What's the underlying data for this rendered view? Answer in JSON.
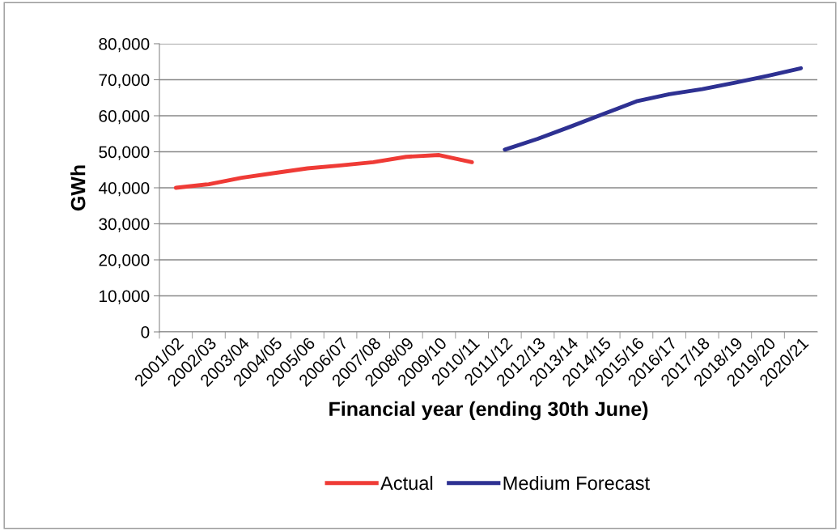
{
  "chart_data": {
    "type": "line",
    "xlabel": "Financial year (ending 30th June)",
    "ylabel": "GWh",
    "categories": [
      "2001/02",
      "2002/03",
      "2003/04",
      "2004/05",
      "2005/06",
      "2006/07",
      "2007/08",
      "2008/09",
      "2009/10",
      "2010/11",
      "2011/12",
      "2012/13",
      "2013/14",
      "2014/15",
      "2015/16",
      "2016/17",
      "2017/18",
      "2018/19",
      "2019/20",
      "2020/21"
    ],
    "series": [
      {
        "name": "Actual",
        "color": "#ef3b36",
        "values": [
          40000,
          41000,
          42800,
          44100,
          45400,
          46200,
          47100,
          48600,
          49100,
          47100,
          null,
          null,
          null,
          null,
          null,
          null,
          null,
          null,
          null,
          null
        ]
      },
      {
        "name": "Medium Forecast",
        "color": "#2e3192",
        "values": [
          null,
          null,
          null,
          null,
          null,
          null,
          null,
          null,
          null,
          null,
          50600,
          53600,
          57000,
          60500,
          64000,
          66000,
          67400,
          69200,
          71100,
          73200
        ]
      }
    ],
    "ylim": [
      0,
      80000
    ],
    "yticks": [
      {
        "value": 0,
        "label": "0"
      },
      {
        "value": 10000,
        "label": "10,000"
      },
      {
        "value": 20000,
        "label": "20,000"
      },
      {
        "value": 30000,
        "label": "30,000"
      },
      {
        "value": 40000,
        "label": "40,000"
      },
      {
        "value": 50000,
        "label": "50,000"
      },
      {
        "value": 60000,
        "label": "60,000"
      },
      {
        "value": 70000,
        "label": "70,000"
      },
      {
        "value": 80000,
        "label": "80,000"
      }
    ],
    "grid": "y",
    "legend": "bottom",
    "marker": "none",
    "line_style": "solid"
  }
}
